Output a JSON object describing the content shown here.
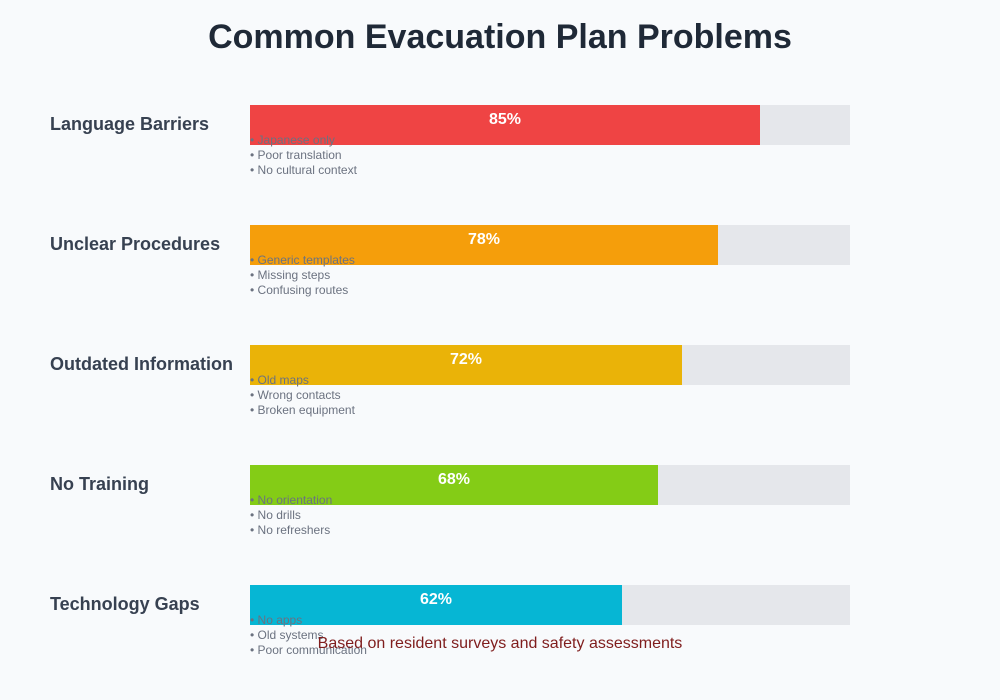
{
  "chart_data": {
    "type": "bar",
    "orientation": "horizontal",
    "title": "Common Evacuation Plan Problems",
    "xlim": [
      0,
      100
    ],
    "unit": "%",
    "categories": [
      "Language Barriers",
      "Unclear Procedures",
      "Outdated Information",
      "No Training",
      "Technology Gaps"
    ],
    "values": [
      85,
      78,
      72,
      68,
      62
    ],
    "value_labels": [
      "85%",
      "78%",
      "72%",
      "68%",
      "62%"
    ],
    "colors": [
      "#ef4444",
      "#f59e0b",
      "#eab308",
      "#84cc16",
      "#06b6d4"
    ],
    "details": [
      [
        "• Japanese only",
        "• Poor translation",
        "• No cultural context"
      ],
      [
        "• Generic templates",
        "• Missing steps",
        "• Confusing routes"
      ],
      [
        "• Old maps",
        "• Wrong contacts",
        "• Broken equipment"
      ],
      [
        "• No orientation",
        "• No drills",
        "• No refreshers"
      ],
      [
        "• No apps",
        "• Old systems",
        "• Poor communication"
      ]
    ],
    "footnote": "Based on resident surveys and safety assessments"
  }
}
